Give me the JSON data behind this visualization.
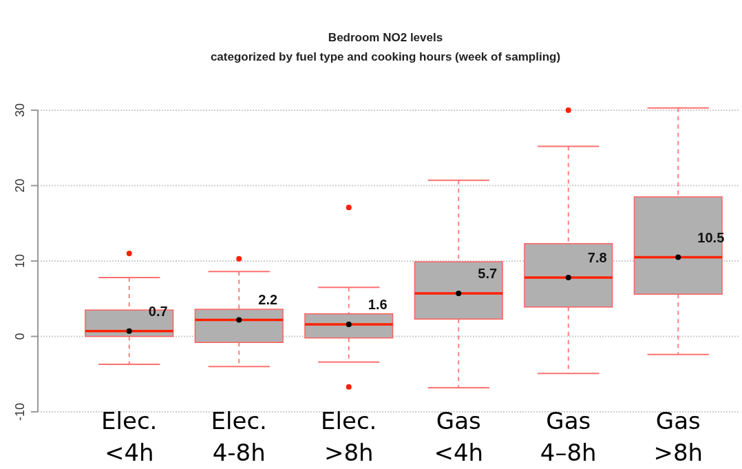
{
  "chart_data": {
    "type": "box",
    "title": "Bedroom NO2 levels",
    "subtitle": "categorized by fuel type and cooking hours (week of sampling)",
    "categories": [
      "Elec. <4h",
      "Elec. 4-8h",
      "Elec. >8h",
      "Gas <4h",
      "Gas 4–8h",
      "Gas >8h"
    ],
    "ylim": [
      -10,
      30
    ],
    "yticks": [
      -10,
      0,
      10,
      20,
      30
    ],
    "grid": "y",
    "series": [
      {
        "color": "#b0b0b0",
        "boxes": [
          {
            "low": -3.7,
            "q1": 0,
            "median": 0.7,
            "q3": 3.5,
            "high": 7.8,
            "mean": 0.7,
            "outliers": [
              11
            ]
          },
          {
            "low": -4,
            "q1": -0.8,
            "median": 2.2,
            "q3": 3.6,
            "high": 8.6,
            "mean": 2.2,
            "outliers": [
              10.3
            ]
          },
          {
            "low": -3.4,
            "q1": -0.2,
            "median": 1.6,
            "q3": 3,
            "high": 6.5,
            "mean": 1.6,
            "outliers": [
              17.1,
              -6.7
            ]
          },
          {
            "low": -6.8,
            "q1": 2.3,
            "median": 5.7,
            "q3": 9.9,
            "high": 20.7,
            "mean": 5.7
          },
          {
            "low": -4.9,
            "q1": 3.9,
            "median": 7.8,
            "q3": 12.3,
            "high": 25.2,
            "mean": 7.8,
            "outliers": [
              30
            ]
          },
          {
            "low": -2.4,
            "q1": 5.6,
            "median": 10.5,
            "q3": 18.5,
            "high": 30.3,
            "mean": 10.5
          }
        ]
      }
    ],
    "annotations": [
      {
        "text": "0.7",
        "x": "Elec. <4h",
        "y": 0.7
      },
      {
        "text": "2.2",
        "x": "Elec. 4-8h",
        "y": 2.2
      },
      {
        "text": "1.6",
        "x": "Elec. >8h",
        "y": 1.6
      },
      {
        "text": "5.7",
        "x": "Gas <4h",
        "y": 5.7
      },
      {
        "text": "7.8",
        "x": "Gas 4–8h",
        "y": 7.8
      },
      {
        "text": "10.5",
        "x": "Gas >8h",
        "y": 10.5
      }
    ]
  }
}
